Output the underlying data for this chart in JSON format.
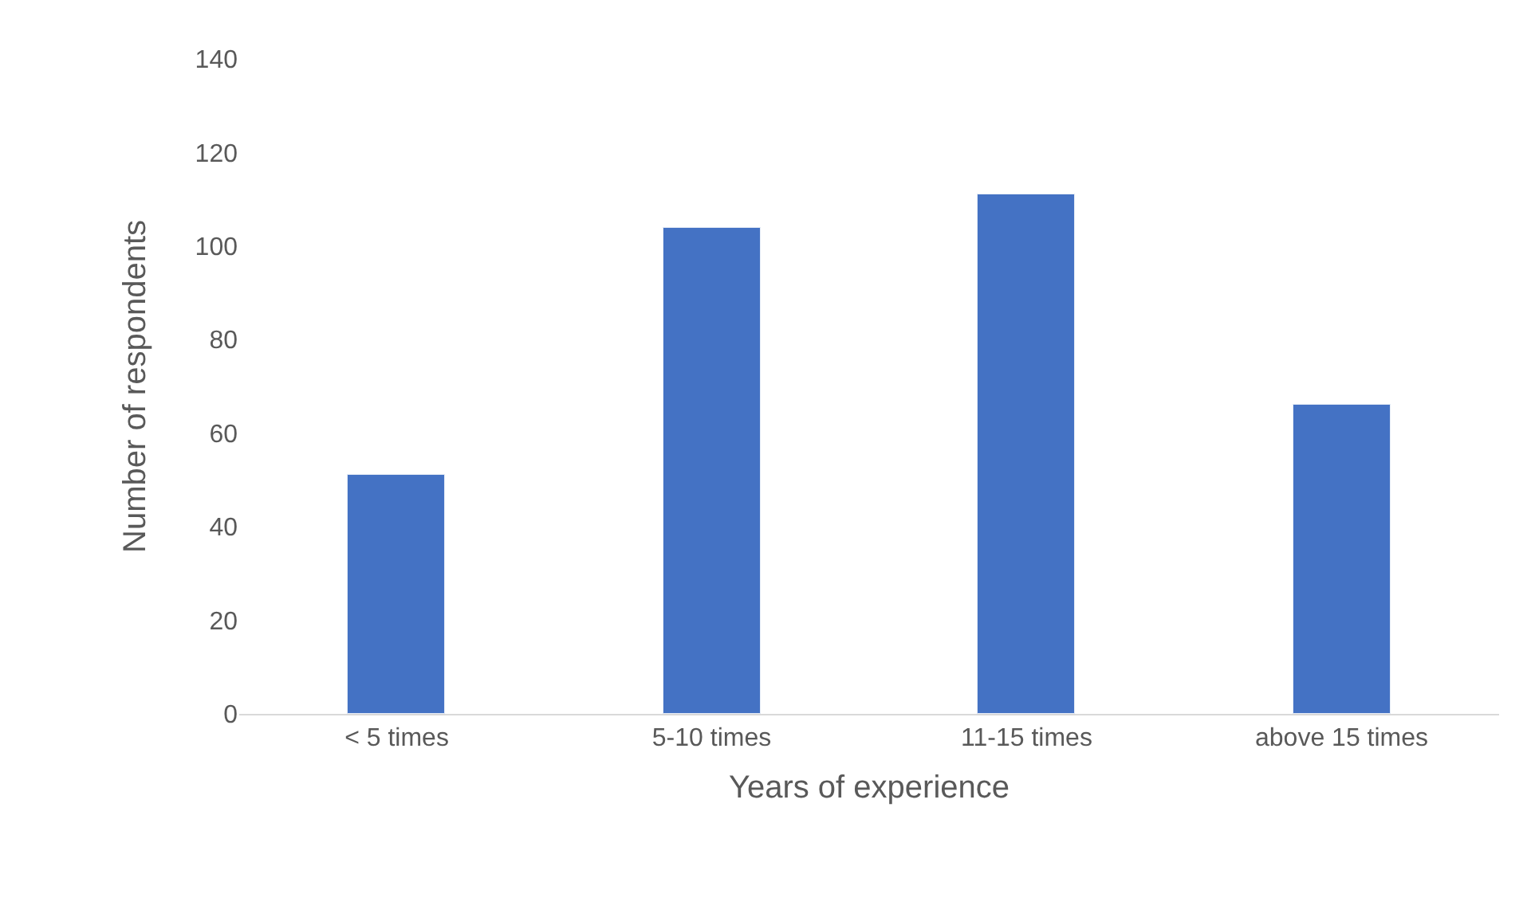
{
  "chart_data": {
    "type": "bar",
    "xlabel": "Years of experience",
    "ylabel": "Number of respondents",
    "categories": [
      "< 5 times",
      "5-10 times",
      "11-15 times",
      "above 15 times"
    ],
    "values": [
      51,
      104,
      111,
      66
    ],
    "color": "#4472c4",
    "ylim": [
      0,
      140
    ],
    "yticks": [
      0,
      20,
      40,
      60,
      80,
      100,
      120,
      140
    ],
    "grid": false,
    "legend": false
  }
}
